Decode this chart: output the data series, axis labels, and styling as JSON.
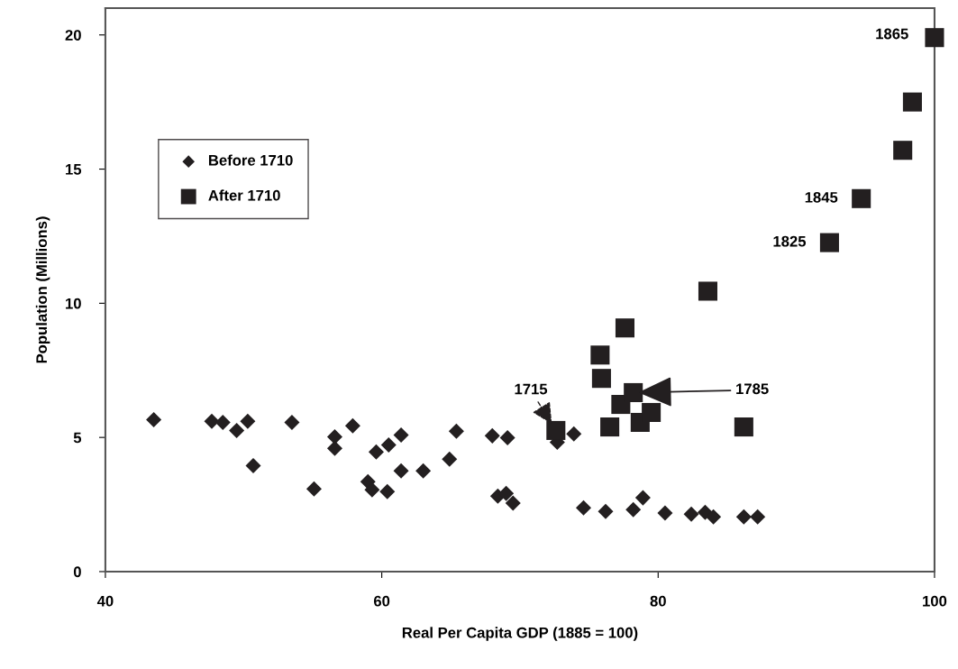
{
  "chart_data": {
    "type": "scatter",
    "xlabel": "Real Per Capita GDP (1885 = 100)",
    "ylabel": "Population (Millions)",
    "xlim": [
      40,
      100
    ],
    "ylim": [
      0,
      21
    ],
    "xticks": [
      40,
      60,
      80,
      100
    ],
    "yticks": [
      0,
      5,
      10,
      15,
      20
    ],
    "grid": false,
    "legend": "top left",
    "series": [
      {
        "name": "Before 1710",
        "color": "#231f20",
        "marker": "diamond",
        "x": [
          43.5,
          47.7,
          48.5,
          49.5,
          50.3,
          50.7,
          53.5,
          55.1,
          56.6,
          56.6,
          57.9,
          59.0,
          59.3,
          60.4,
          59.6,
          60.5,
          61.4,
          61.4,
          63.0,
          64.9,
          65.4,
          68.0,
          69.1,
          68.4,
          69.0,
          69.5,
          72.7,
          73.9,
          74.6,
          76.2,
          78.2,
          78.9,
          80.5,
          82.4,
          83.4,
          84.0,
          86.2,
          87.2
        ],
        "values": [
          5.66,
          5.6,
          5.56,
          5.26,
          5.6,
          3.95,
          5.56,
          3.08,
          5.02,
          4.59,
          5.43,
          3.35,
          3.05,
          2.98,
          4.46,
          4.72,
          5.09,
          3.75,
          3.75,
          4.19,
          5.23,
          5.06,
          4.99,
          2.81,
          2.91,
          2.55,
          4.82,
          5.13,
          2.38,
          2.24,
          2.31,
          2.75,
          2.18,
          2.14,
          2.21,
          2.04,
          2.04,
          2.04
        ]
      },
      {
        "name": "After 1710",
        "color": "#231f20",
        "marker": "square",
        "x": [
          72.6,
          75.8,
          75.9,
          77.6,
          76.5,
          77.3,
          78.2,
          78.7,
          79.5,
          86.2,
          83.6,
          92.4,
          94.7,
          97.7,
          98.4,
          100
        ],
        "values": [
          5.26,
          8.07,
          7.2,
          9.08,
          5.39,
          6.23,
          6.67,
          5.56,
          5.93,
          5.39,
          10.45,
          12.26,
          13.9,
          15.7,
          17.5,
          19.9
        ]
      }
    ],
    "annotations": [
      {
        "text": "1715",
        "x": 72.6,
        "y": 5.26
      },
      {
        "text": "1785",
        "x": 78.2,
        "y": 6.67
      },
      {
        "text": "1825",
        "x": 92.4,
        "y": 12.26
      },
      {
        "text": "1845",
        "x": 94.7,
        "y": 13.9
      },
      {
        "text": "1865",
        "x": 100,
        "y": 19.9
      }
    ]
  }
}
